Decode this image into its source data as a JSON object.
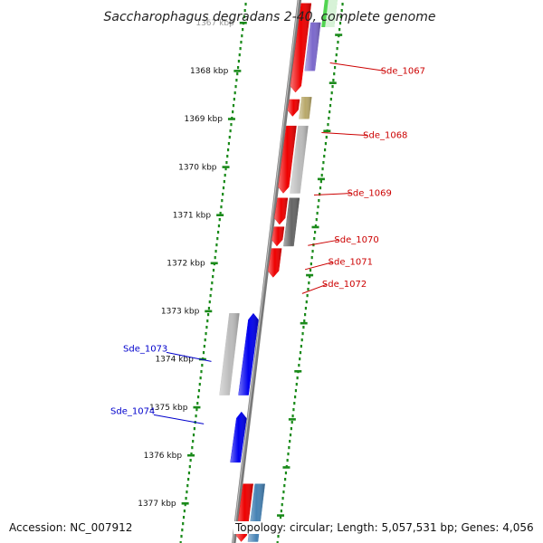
{
  "title": "Saccharophagus degradans 2-40, complete genome",
  "footer": {
    "accession": "Accession: NC_007912",
    "topology": "Topology: circular; Length: 5,057,531 bp; Genes: 4,056"
  },
  "scale_ticks": [
    {
      "label": "1367 kbp",
      "kbp": 1367
    },
    {
      "label": "1368 kbp",
      "kbp": 1368
    },
    {
      "label": "1369 kbp",
      "kbp": 1369
    },
    {
      "label": "1370 kbp",
      "kbp": 1370
    },
    {
      "label": "1371 kbp",
      "kbp": 1371
    },
    {
      "label": "1372 kbp",
      "kbp": 1372
    },
    {
      "label": "1373 kbp",
      "kbp": 1373
    },
    {
      "label": "1374 kbp",
      "kbp": 1374
    },
    {
      "label": "1375 kbp",
      "kbp": 1375
    },
    {
      "label": "1376 kbp",
      "kbp": 1376
    },
    {
      "label": "1377 kbp",
      "kbp": 1377
    }
  ],
  "genes": [
    {
      "strand": "forward",
      "start": 1366.6,
      "end": 1368.45,
      "color": "#ee0000"
    },
    {
      "strand": "forward",
      "start": 1368.6,
      "end": 1368.95,
      "color": "#ee0000"
    },
    {
      "strand": "forward",
      "start": 1369.15,
      "end": 1370.55,
      "color": "#ee0000"
    },
    {
      "strand": "forward",
      "start": 1370.65,
      "end": 1371.2,
      "color": "#ee0000"
    },
    {
      "strand": "forward",
      "start": 1371.25,
      "end": 1371.65,
      "color": "#ee0000"
    },
    {
      "strand": "forward",
      "start": 1371.7,
      "end": 1372.3,
      "color": "#ee0000"
    },
    {
      "strand": "forward",
      "start": 1376.6,
      "end": 1377.8,
      "color": "#ee0000"
    },
    {
      "strand": "feature",
      "start": 1367.0,
      "end": 1368.0,
      "color": "#7b68cc"
    },
    {
      "strand": "feature",
      "start": 1368.55,
      "end": 1369.0,
      "color": "#b8a86a"
    },
    {
      "strand": "feature",
      "start": 1369.15,
      "end": 1370.55,
      "color": "#bcbcbc"
    },
    {
      "strand": "feature",
      "start": 1370.65,
      "end": 1371.65,
      "color": "#666666"
    },
    {
      "strand": "feature",
      "start": 1376.6,
      "end": 1377.8,
      "color": "#4682b4"
    },
    {
      "strand": "reverse",
      "start": 1373.05,
      "end": 1374.75,
      "color": "#0000ee"
    },
    {
      "strand": "reverse",
      "start": 1375.1,
      "end": 1376.15,
      "color": "#0000ee"
    },
    {
      "strand": "reverse-feature",
      "start": 1373.05,
      "end": 1374.75,
      "color": "#bcbcbc"
    }
  ],
  "gene_labels": [
    {
      "text": "Sde_1067",
      "strand": "forward",
      "kbp": 1367.8,
      "color": "#cc0000"
    },
    {
      "text": "Sde_1068",
      "strand": "forward",
      "kbp": 1369.25,
      "color": "#cc0000"
    },
    {
      "text": "Sde_1069",
      "strand": "forward",
      "kbp": 1370.55,
      "color": "#cc0000"
    },
    {
      "text": "Sde_1070",
      "strand": "forward",
      "kbp": 1371.6,
      "color": "#cc0000"
    },
    {
      "text": "Sde_1071",
      "strand": "forward",
      "kbp": 1372.1,
      "color": "#cc0000"
    },
    {
      "text": "Sde_1072",
      "strand": "forward",
      "kbp": 1372.6,
      "color": "#cc0000"
    },
    {
      "text": "Sde_1073",
      "strand": "reverse",
      "kbp": 1373.9,
      "color": "#0000cc"
    },
    {
      "text": "Sde_1074",
      "strand": "reverse",
      "kbp": 1375.2,
      "color": "#0000cc"
    }
  ],
  "colors": {
    "backbone": "#7a7a7a",
    "dotted_track": "#1a8a1a",
    "top_green_feature": "#33cc33"
  }
}
